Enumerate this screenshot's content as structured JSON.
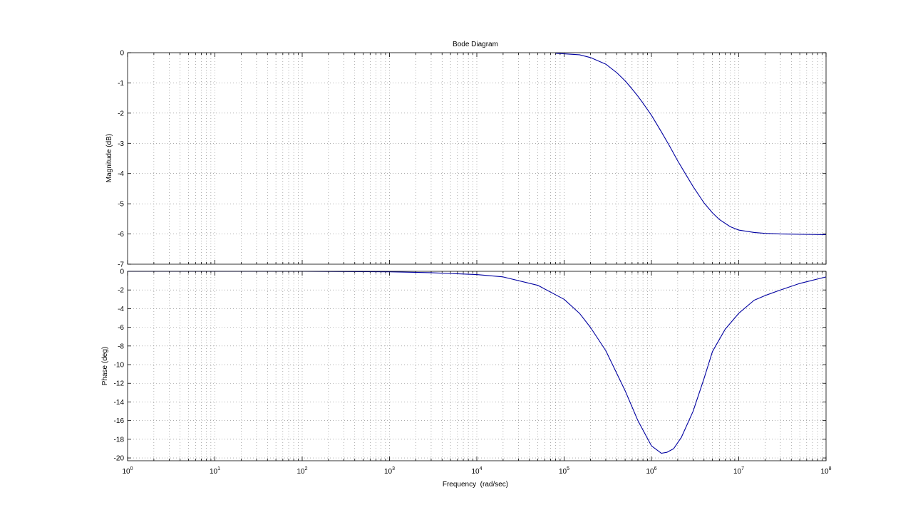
{
  "chart_data": [
    {
      "type": "line",
      "panel": "magnitude",
      "title": "Bode Diagram",
      "ylabel": "Magnitude (dB)",
      "xscale": "log",
      "xlim": [
        1,
        100000000
      ],
      "ylim": [
        -7,
        0
      ],
      "grid": true,
      "yticks": [
        0,
        -1,
        -2,
        -3,
        -4,
        -5,
        -6,
        -7
      ],
      "series": [
        {
          "color": "#0000a0",
          "x": [
            80000,
            150000,
            200000,
            300000,
            400000,
            500000,
            600000,
            700000,
            800000,
            1000000,
            1300000,
            1600000,
            2000000,
            2500000,
            3000000,
            4000000,
            5000000,
            6000000,
            8000000,
            10000000,
            15000000,
            20000000,
            30000000,
            50000000,
            100000000
          ],
          "y": [
            -0.02,
            -0.07,
            -0.16,
            -0.38,
            -0.66,
            -0.93,
            -1.2,
            -1.44,
            -1.67,
            -2.07,
            -2.62,
            -3.07,
            -3.58,
            -4.05,
            -4.43,
            -4.97,
            -5.3,
            -5.52,
            -5.76,
            -5.87,
            -5.95,
            -5.98,
            -6.0,
            -6.01,
            -6.02
          ]
        }
      ]
    },
    {
      "type": "line",
      "panel": "phase",
      "ylabel": "Phase (deg)",
      "xlabel": "Frequency  (rad/sec)",
      "xscale": "log",
      "xlim": [
        1,
        100000000
      ],
      "ylim": [
        -20.3,
        0
      ],
      "grid": true,
      "yticks": [
        0,
        -2,
        -4,
        -6,
        -8,
        -10,
        -12,
        -14,
        -16,
        -18,
        -20
      ],
      "xticks": [
        {
          "base": "10",
          "exp": "0",
          "value": 1
        },
        {
          "base": "10",
          "exp": "1",
          "value": 10
        },
        {
          "base": "10",
          "exp": "2",
          "value": 100
        },
        {
          "base": "10",
          "exp": "3",
          "value": 1000
        },
        {
          "base": "10",
          "exp": "4",
          "value": 10000
        },
        {
          "base": "10",
          "exp": "5",
          "value": 100000
        },
        {
          "base": "10",
          "exp": "6",
          "value": 1000000
        },
        {
          "base": "10",
          "exp": "7",
          "value": 10000000
        },
        {
          "base": "10",
          "exp": "8",
          "value": 100000000
        }
      ],
      "series": [
        {
          "color": "#0000a0",
          "x": [
            1,
            100,
            1000,
            3000,
            10000,
            20000,
            50000,
            100000,
            150000,
            200000,
            300000,
            500000,
            700000,
            1000000,
            1300000,
            1500000,
            1800000,
            2200000,
            3000000,
            4000000,
            5000000,
            7000000,
            10000000,
            15000000,
            20000000,
            30000000,
            50000000,
            100000000
          ],
          "y": [
            0.0,
            0.0,
            -0.05,
            -0.15,
            -0.35,
            -0.6,
            -1.5,
            -3.0,
            -4.5,
            -6.0,
            -8.5,
            -12.8,
            -16.0,
            -18.7,
            -19.5,
            -19.4,
            -19.0,
            -17.8,
            -15.0,
            -11.5,
            -8.6,
            -6.2,
            -4.5,
            -3.1,
            -2.6,
            -2.0,
            -1.3,
            -0.6
          ]
        }
      ]
    }
  ]
}
